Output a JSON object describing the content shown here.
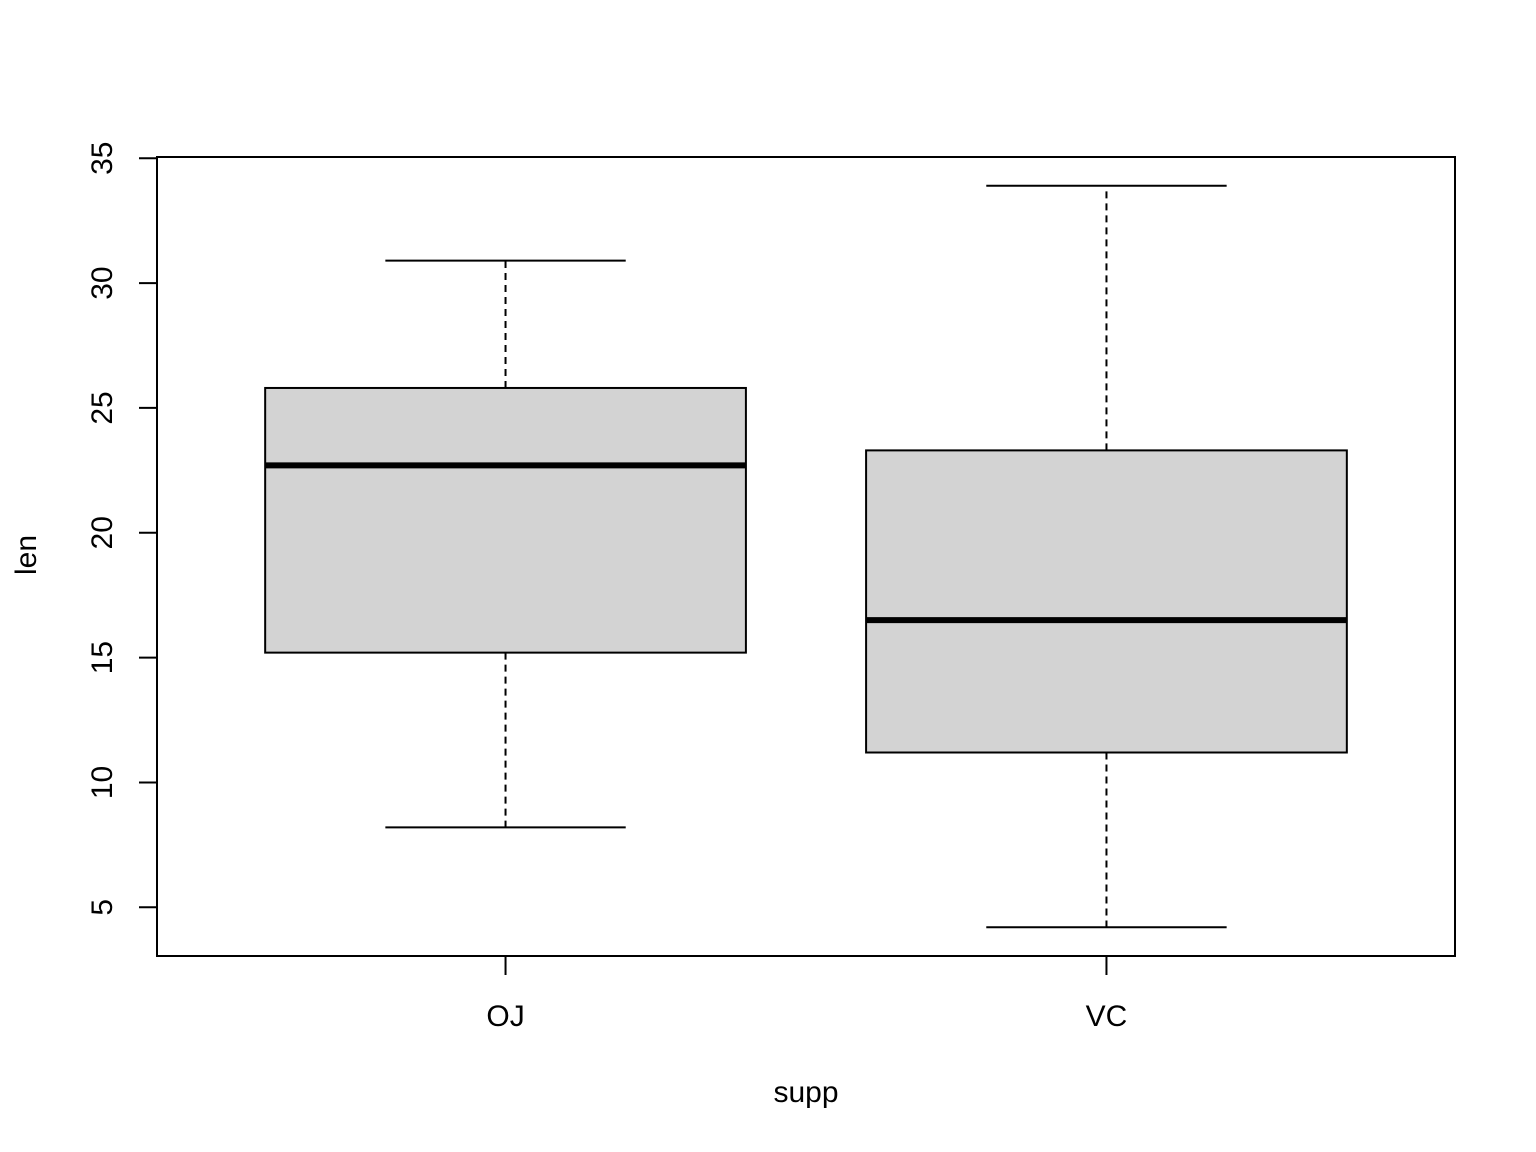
{
  "chart_data": {
    "type": "boxplot",
    "title": "",
    "xlabel": "supp",
    "ylabel": "len",
    "categories": [
      "OJ",
      "VC"
    ],
    "boxes": [
      {
        "category": "OJ",
        "whisker_low": 8.2,
        "q1": 15.2,
        "median": 22.7,
        "q3": 25.8,
        "whisker_high": 30.9
      },
      {
        "category": "VC",
        "whisker_low": 4.2,
        "q1": 11.2,
        "median": 16.5,
        "q3": 23.3,
        "whisker_high": 33.9
      }
    ],
    "yticks": [
      5,
      10,
      15,
      20,
      25,
      30,
      35
    ],
    "ylim": [
      3.05,
      35.05
    ],
    "grid": false,
    "box_fill": "#d3d3d3",
    "line_color": "#000000"
  }
}
